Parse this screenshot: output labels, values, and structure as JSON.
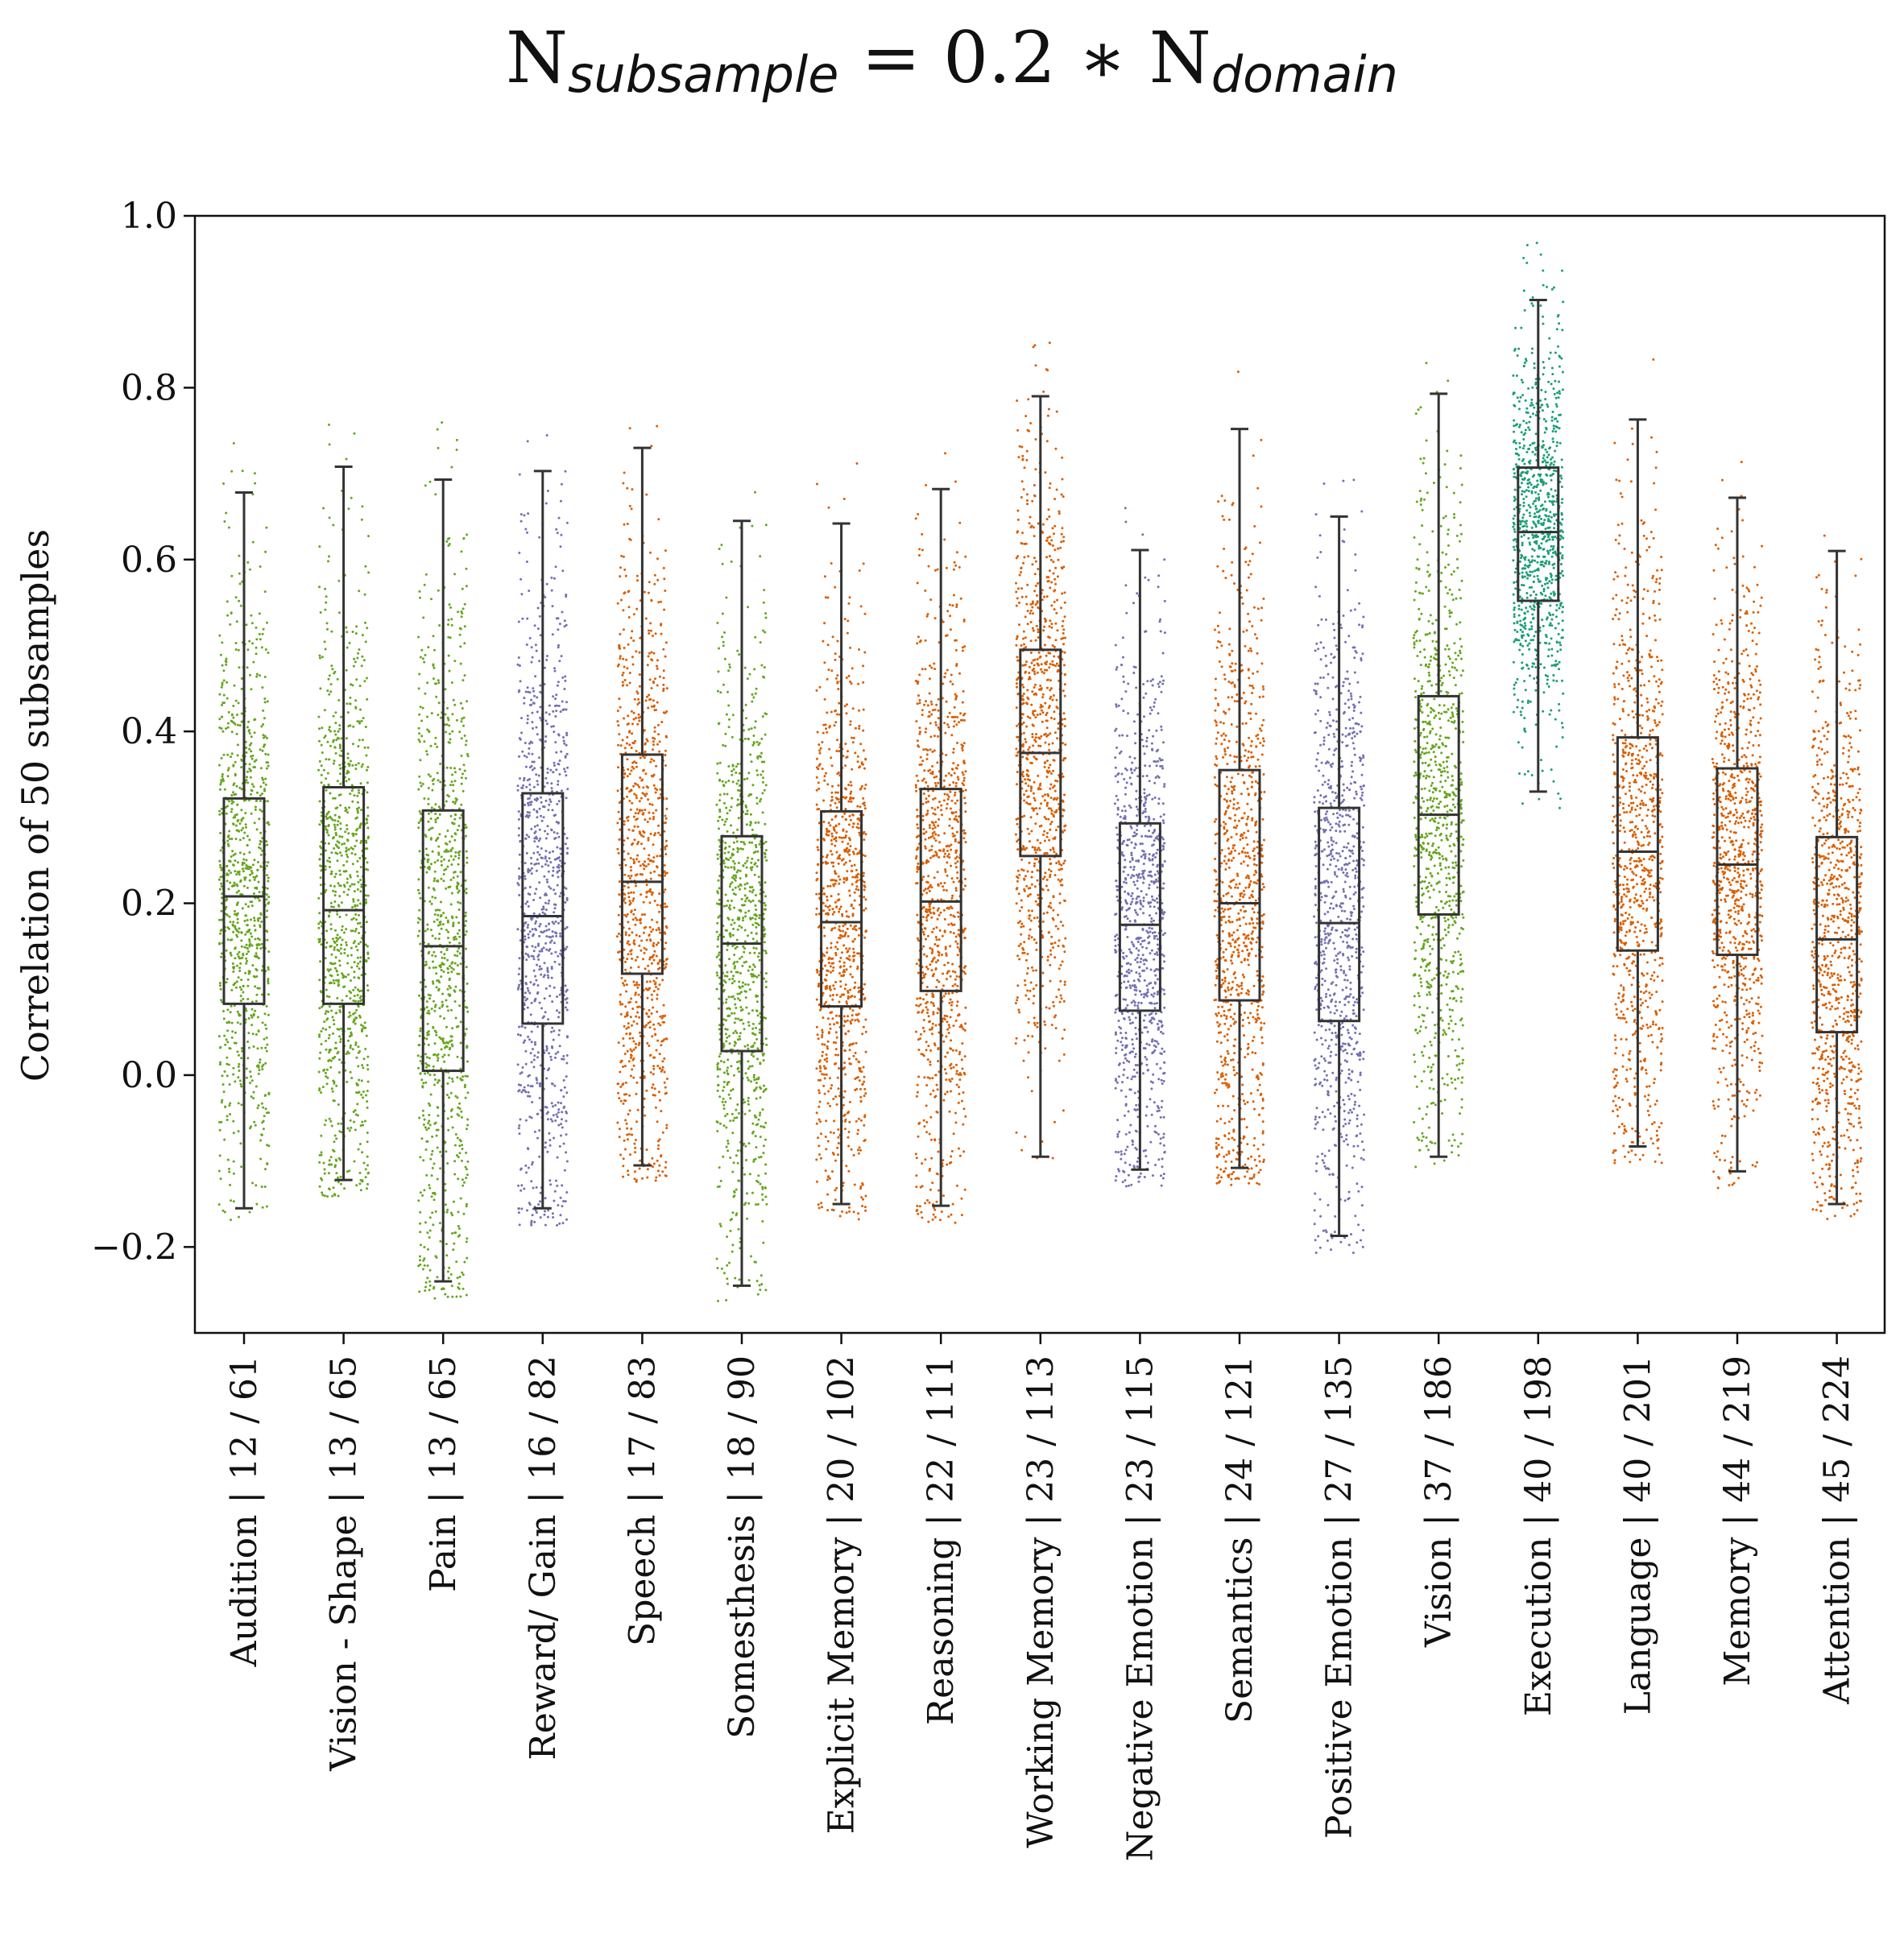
{
  "chart_data": {
    "type": "box",
    "title": {
      "parts": [
        {
          "text": "N",
          "style": "main"
        },
        {
          "text": "subsample",
          "style": "sub"
        },
        {
          "text": " = 0.2 ∗ N",
          "style": "main"
        },
        {
          "text": "domain",
          "style": "sub"
        }
      ]
    },
    "ylabel": "Correlation of 50 subsamples",
    "xlabel": "",
    "ylim": [
      -0.3,
      1.0
    ],
    "yticks": [
      -0.2,
      0.0,
      0.2,
      0.4,
      0.6,
      0.8,
      1.0
    ],
    "ytick_labels": [
      "−0.2",
      "0.0",
      "0.2",
      "0.4",
      "0.6",
      "0.8",
      "1.0"
    ],
    "grid": false,
    "legend": "none",
    "colors": {
      "green": "#66a61e",
      "purple": "#7570b3",
      "orange": "#d95f02",
      "teal": "#1b9e77",
      "box_edge": "#333333"
    },
    "categories": [
      {
        "label": "Audition | 12 / 61",
        "color": "green",
        "whislo": -0.155,
        "q1": 0.083,
        "med": 0.208,
        "q3": 0.322,
        "whishi": 0.678
      },
      {
        "label": "Vision - Shape | 13 / 65",
        "color": "green",
        "whislo": -0.122,
        "q1": 0.083,
        "med": 0.192,
        "q3": 0.335,
        "whishi": 0.708
      },
      {
        "label": "Pain | 13 / 65",
        "color": "green",
        "whislo": -0.24,
        "q1": 0.005,
        "med": 0.15,
        "q3": 0.308,
        "whishi": 0.693
      },
      {
        "label": "Reward/ Gain | 16 / 82",
        "color": "purple",
        "whislo": -0.155,
        "q1": 0.06,
        "med": 0.185,
        "q3": 0.328,
        "whishi": 0.703
      },
      {
        "label": "Speech | 17 / 83",
        "color": "orange",
        "whislo": -0.105,
        "q1": 0.118,
        "med": 0.225,
        "q3": 0.373,
        "whishi": 0.73
      },
      {
        "label": "Somesthesis | 18 / 90",
        "color": "green",
        "whislo": -0.245,
        "q1": 0.028,
        "med": 0.153,
        "q3": 0.278,
        "whishi": 0.645
      },
      {
        "label": "Explicit Memory | 20 / 102",
        "color": "orange",
        "whislo": -0.15,
        "q1": 0.08,
        "med": 0.178,
        "q3": 0.307,
        "whishi": 0.642
      },
      {
        "label": "Reasoning | 22 / 111",
        "color": "orange",
        "whislo": -0.152,
        "q1": 0.098,
        "med": 0.202,
        "q3": 0.333,
        "whishi": 0.682
      },
      {
        "label": "Working Memory | 23 / 113",
        "color": "orange",
        "whislo": -0.095,
        "q1": 0.255,
        "med": 0.375,
        "q3": 0.495,
        "whishi": 0.79
      },
      {
        "label": "Negative Emotion | 23 / 115",
        "color": "purple",
        "whislo": -0.11,
        "q1": 0.075,
        "med": 0.175,
        "q3": 0.293,
        "whishi": 0.611
      },
      {
        "label": "Semantics | 24 / 121",
        "color": "orange",
        "whislo": -0.108,
        "q1": 0.087,
        "med": 0.2,
        "q3": 0.355,
        "whishi": 0.752
      },
      {
        "label": "Positive Emotion | 27 / 135",
        "color": "purple",
        "whislo": -0.187,
        "q1": 0.063,
        "med": 0.177,
        "q3": 0.311,
        "whishi": 0.65
      },
      {
        "label": "Vision | 37 / 186",
        "color": "green",
        "whislo": -0.095,
        "q1": 0.187,
        "med": 0.303,
        "q3": 0.441,
        "whishi": 0.793
      },
      {
        "label": "Execution | 40 / 198",
        "color": "teal",
        "whislo": 0.33,
        "q1": 0.552,
        "med": 0.632,
        "q3": 0.707,
        "whishi": 0.902
      },
      {
        "label": "Language | 40 / 201",
        "color": "orange",
        "whislo": -0.083,
        "q1": 0.145,
        "med": 0.26,
        "q3": 0.393,
        "whishi": 0.763
      },
      {
        "label": "Memory | 44 / 219",
        "color": "orange",
        "whislo": -0.112,
        "q1": 0.14,
        "med": 0.245,
        "q3": 0.357,
        "whishi": 0.672
      },
      {
        "label": "Attention | 45 / 224",
        "color": "orange",
        "whislo": -0.15,
        "q1": 0.05,
        "med": 0.158,
        "q3": 0.277,
        "whishi": 0.61
      }
    ]
  }
}
